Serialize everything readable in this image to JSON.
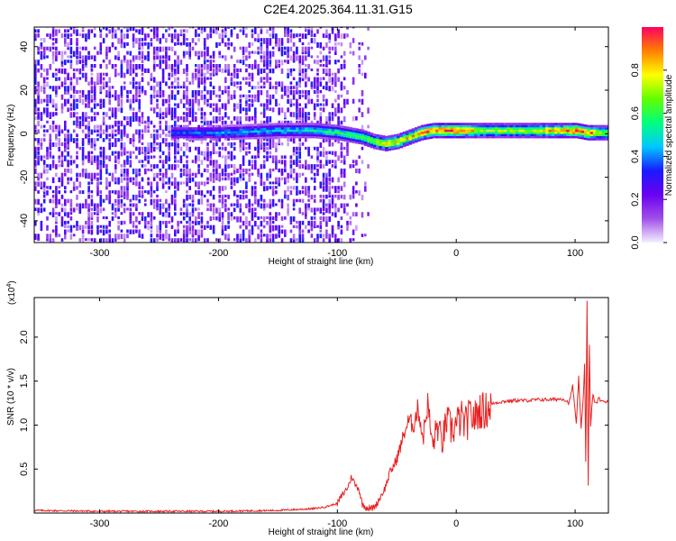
{
  "title": "C2E4.2025.364.11.31.G15",
  "chart_data": [
    {
      "type": "heatmap",
      "xlabel": "Height of straight line (km)",
      "ylabel": "Frequency (Hz)",
      "xlim": [
        -355,
        128
      ],
      "ylim": [
        -50,
        49
      ],
      "xticks": [
        -300,
        -200,
        -100,
        0,
        100
      ],
      "yticks": [
        -40,
        -20,
        0,
        20,
        40
      ],
      "grid": false,
      "signal_track": {
        "x": [
          -240,
          -200,
          -150,
          -120,
          -100,
          -90,
          -80,
          -70,
          -60,
          -50,
          -40,
          -30,
          -20,
          -10,
          0,
          20,
          60,
          100,
          110,
          128
        ],
        "frequency": [
          0,
          0,
          1,
          1,
          0,
          -1,
          -2,
          -4,
          -5,
          -4,
          -2,
          0,
          1,
          1,
          1,
          1,
          1,
          1,
          0,
          0
        ],
        "peak_amplitude": [
          0.35,
          0.4,
          0.45,
          0.5,
          0.55,
          0.6,
          0.65,
          0.7,
          0.75,
          0.8,
          0.8,
          0.85,
          0.9,
          0.95,
          0.95,
          0.7,
          0.7,
          0.95,
          0.9,
          0.6
        ]
      },
      "colorbar": {
        "label": "Normalized spectral amplitude",
        "range": [
          0,
          1
        ],
        "ticks": [
          "0.0",
          "0.2",
          "0.4",
          "0.6",
          "0.8"
        ],
        "colormap": [
          "#f4f0ff",
          "#a050e8",
          "#6a00f0",
          "#1a1aff",
          "#00c8ff",
          "#00ff80",
          "#60ff00",
          "#ffff00",
          "#ff8000",
          "#ff0060"
        ]
      }
    },
    {
      "type": "line",
      "xlabel": "Height of straight line (km)",
      "ylabel": "SNR (10 * v/v)",
      "multiplier": "(x10",
      "exponent": "4",
      "multiplier_close": ")",
      "xlim": [
        -355,
        128
      ],
      "ylim": [
        0,
        2.45
      ],
      "xticks": [
        -300,
        -200,
        -100,
        0,
        100
      ],
      "yticks": [
        "0.5",
        "1.0",
        "1.5",
        "2.0"
      ],
      "ytick_values": [
        0.5,
        1.0,
        1.5,
        2.0
      ],
      "series": [
        {
          "color": "#e82020",
          "x": [
            -355,
            -300,
            -250,
            -200,
            -150,
            -120,
            -110,
            -100,
            -97,
            -94,
            -91,
            -88,
            -85,
            -82,
            -79,
            -76,
            -73,
            -70,
            -67,
            -64,
            -60,
            -56,
            -52,
            -48,
            -44,
            -40,
            -36,
            -32,
            -28,
            -24,
            -20,
            -16,
            -12,
            -8,
            -4,
            0,
            4,
            8,
            12,
            16,
            20,
            24,
            28,
            32,
            36,
            40,
            50,
            60,
            70,
            80,
            90,
            95,
            98,
            101,
            103,
            105,
            107,
            108,
            109,
            110,
            111,
            112,
            113,
            115,
            117,
            120,
            124,
            128
          ],
          "y": [
            0.03,
            0.02,
            0.02,
            0.02,
            0.03,
            0.05,
            0.07,
            0.11,
            0.18,
            0.24,
            0.3,
            0.42,
            0.32,
            0.28,
            0.1,
            0.07,
            0.05,
            0.06,
            0.1,
            0.18,
            0.28,
            0.45,
            0.55,
            0.7,
            0.9,
            1.05,
            1.0,
            1.2,
            0.85,
            1.25,
            0.75,
            1.0,
            0.8,
            1.05,
            0.95,
            1.0,
            1.08,
            1.0,
            1.12,
            1.08,
            1.18,
            1.15,
            1.22,
            1.25,
            1.26,
            1.27,
            1.28,
            1.28,
            1.29,
            1.29,
            1.3,
            1.25,
            1.45,
            1.0,
            1.55,
            0.95,
            1.35,
            1.7,
            0.6,
            2.4,
            0.3,
            1.9,
            1.0,
            1.35,
            1.24,
            1.3,
            1.26,
            1.28
          ]
        }
      ]
    }
  ]
}
